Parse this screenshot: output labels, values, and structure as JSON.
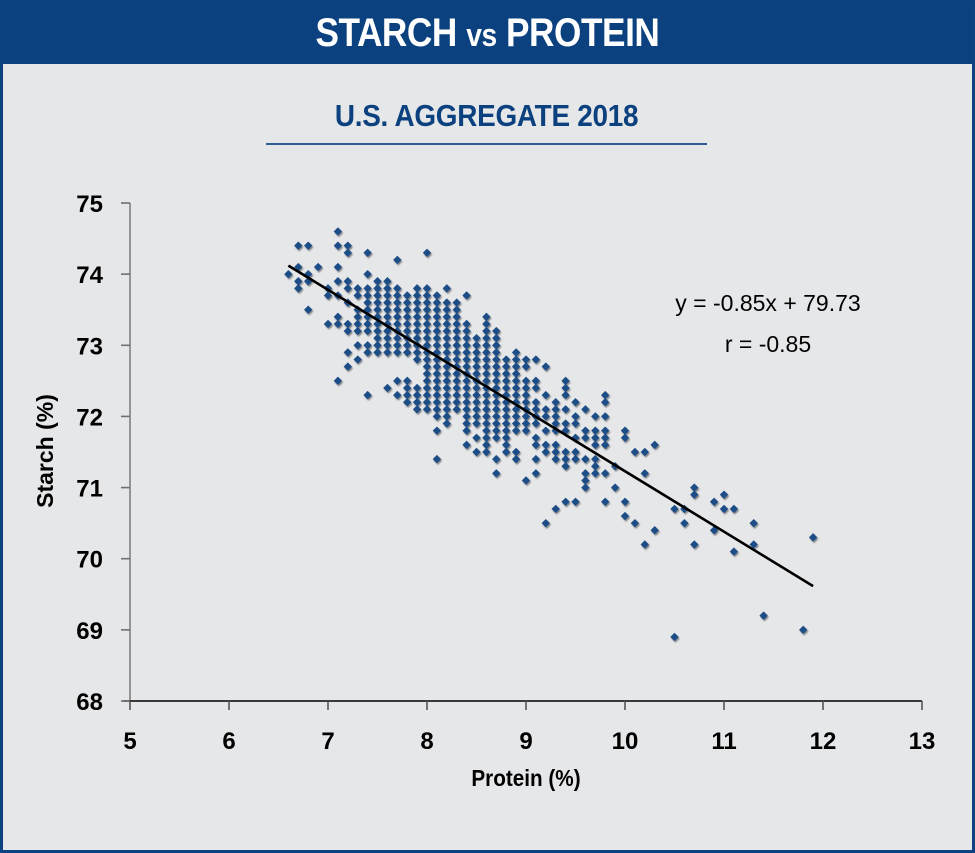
{
  "header": {
    "title_left": "STARCH",
    "title_vs": "vs",
    "title_right": "PROTEIN"
  },
  "colors": {
    "brand_blue": "#0b417e",
    "background": "#e6e7e9",
    "marker": "#1f4e86",
    "trendline": "#000000"
  },
  "chart_data": {
    "type": "scatter",
    "title": "U.S. AGGREGATE 2018",
    "xlabel": "Protein (%)",
    "ylabel": "Starch (%)",
    "xlim": [
      5,
      13
    ],
    "ylim": [
      68,
      75
    ],
    "xticks": [
      "5",
      "6",
      "7",
      "8",
      "9",
      "10",
      "11",
      "12",
      "13"
    ],
    "yticks": [
      "68",
      "69",
      "70",
      "71",
      "72",
      "73",
      "74",
      "75"
    ],
    "grid": false,
    "legend": "none",
    "marker": "diamond",
    "annotations": {
      "equation": "y = -0.85x + 79.73",
      "r": "r = -0.85"
    },
    "trendline": {
      "slope": -0.85,
      "intercept": 79.73,
      "x_range": [
        6.6,
        11.9
      ]
    },
    "points_by_protein": [
      {
        "x": 6.6,
        "y": [
          74.0
        ]
      },
      {
        "x": 6.7,
        "y": [
          74.4,
          74.1,
          73.9,
          73.8
        ]
      },
      {
        "x": 6.8,
        "y": [
          74.4,
          74.0,
          73.9,
          73.5
        ]
      },
      {
        "x": 6.9,
        "y": [
          74.1
        ]
      },
      {
        "x": 7.0,
        "y": [
          73.8,
          73.7,
          73.3
        ]
      },
      {
        "x": 7.1,
        "y": [
          74.6,
          74.4,
          74.1,
          73.9,
          73.7,
          73.4,
          73.3,
          72.5
        ]
      },
      {
        "x": 7.2,
        "y": [
          74.4,
          74.3,
          73.9,
          73.8,
          73.6,
          73.3,
          73.2,
          72.9,
          72.7
        ]
      },
      {
        "x": 7.3,
        "y": [
          73.8,
          73.7,
          73.5,
          73.4,
          73.3,
          73.2,
          73.0,
          72.8
        ]
      },
      {
        "x": 7.4,
        "y": [
          74.3,
          74.0,
          73.8,
          73.7,
          73.6,
          73.5,
          73.4,
          73.3,
          73.2,
          73.0,
          72.9,
          72.3
        ]
      },
      {
        "x": 7.5,
        "y": [
          73.9,
          73.8,
          73.7,
          73.6,
          73.5,
          73.4,
          73.3,
          73.2,
          73.1,
          73.0,
          72.9
        ]
      },
      {
        "x": 7.6,
        "y": [
          73.9,
          73.8,
          73.7,
          73.6,
          73.5,
          73.4,
          73.3,
          73.2,
          73.1,
          73.0,
          72.9,
          72.4
        ]
      },
      {
        "x": 7.7,
        "y": [
          74.2,
          73.8,
          73.7,
          73.6,
          73.5,
          73.4,
          73.3,
          73.2,
          73.1,
          73.0,
          72.9,
          72.5,
          72.3
        ]
      },
      {
        "x": 7.8,
        "y": [
          73.7,
          73.6,
          73.5,
          73.4,
          73.3,
          73.2,
          73.1,
          73.0,
          72.9,
          72.5,
          72.4,
          72.3,
          72.2
        ]
      },
      {
        "x": 7.9,
        "y": [
          73.8,
          73.7,
          73.6,
          73.5,
          73.4,
          73.3,
          73.2,
          73.1,
          73.0,
          72.9,
          72.8,
          72.4,
          72.3,
          72.2,
          72.1
        ]
      },
      {
        "x": 8.0,
        "y": [
          74.3,
          73.8,
          73.7,
          73.6,
          73.5,
          73.4,
          73.3,
          73.2,
          73.1,
          73.0,
          72.9,
          72.8,
          72.7,
          72.6,
          72.5,
          72.4,
          72.3,
          72.2,
          72.1
        ]
      },
      {
        "x": 8.1,
        "y": [
          73.7,
          73.6,
          73.5,
          73.4,
          73.3,
          73.2,
          73.1,
          73.0,
          72.9,
          72.8,
          72.7,
          72.6,
          72.5,
          72.4,
          72.3,
          72.2,
          72.1,
          72.0,
          71.8,
          71.4
        ]
      },
      {
        "x": 8.2,
        "y": [
          73.8,
          73.6,
          73.5,
          73.4,
          73.3,
          73.2,
          73.1,
          73.0,
          72.9,
          72.8,
          72.7,
          72.6,
          72.5,
          72.4,
          72.3,
          72.2,
          72.1,
          72.0,
          71.9
        ]
      },
      {
        "x": 8.3,
        "y": [
          73.6,
          73.5,
          73.4,
          73.3,
          73.2,
          73.1,
          73.0,
          72.9,
          72.8,
          72.7,
          72.6,
          72.5,
          72.4,
          72.3,
          72.2,
          72.1
        ]
      },
      {
        "x": 8.4,
        "y": [
          73.7,
          73.3,
          73.2,
          73.1,
          73.0,
          72.9,
          72.8,
          72.7,
          72.6,
          72.5,
          72.4,
          72.3,
          72.2,
          72.1,
          72.0,
          71.9,
          71.8,
          71.6
        ]
      },
      {
        "x": 8.5,
        "y": [
          73.1,
          73.0,
          72.9,
          72.8,
          72.7,
          72.6,
          72.5,
          72.4,
          72.3,
          72.2,
          72.1,
          72.0,
          71.9,
          71.7,
          71.5
        ]
      },
      {
        "x": 8.6,
        "y": [
          73.4,
          73.3,
          73.2,
          73.1,
          73.0,
          72.9,
          72.8,
          72.7,
          72.6,
          72.5,
          72.4,
          72.3,
          72.2,
          72.1,
          72.0,
          71.9,
          71.8,
          71.7,
          71.6,
          71.5
        ]
      },
      {
        "x": 8.7,
        "y": [
          73.2,
          73.1,
          73.0,
          72.9,
          72.8,
          72.7,
          72.6,
          72.5,
          72.4,
          72.3,
          72.2,
          72.1,
          72.0,
          71.9,
          71.8,
          71.7,
          71.4,
          71.2
        ]
      },
      {
        "x": 8.8,
        "y": [
          72.8,
          72.7,
          72.6,
          72.5,
          72.4,
          72.3,
          72.2,
          72.1,
          72.0,
          71.9,
          71.8,
          71.7,
          71.6,
          71.5
        ]
      },
      {
        "x": 8.9,
        "y": [
          72.9,
          72.8,
          72.7,
          72.6,
          72.5,
          72.4,
          72.3,
          72.2,
          72.1,
          72.0,
          71.9,
          71.8,
          71.5,
          71.4
        ]
      },
      {
        "x": 9.0,
        "y": [
          72.8,
          72.7,
          72.5,
          72.4,
          72.3,
          72.2,
          72.1,
          72.0,
          71.9,
          71.8,
          71.1
        ]
      },
      {
        "x": 9.1,
        "y": [
          72.8,
          72.5,
          72.4,
          72.2,
          72.1,
          72.0,
          71.9,
          71.7,
          71.6,
          71.4,
          71.2
        ]
      },
      {
        "x": 9.2,
        "y": [
          72.7,
          72.3,
          72.1,
          72.0,
          71.8,
          71.6,
          71.5,
          70.5
        ]
      },
      {
        "x": 9.3,
        "y": [
          72.2,
          72.1,
          72.0,
          71.9,
          71.8,
          71.6,
          71.5,
          71.4,
          70.7
        ]
      },
      {
        "x": 9.4,
        "y": [
          72.5,
          72.4,
          72.3,
          72.1,
          71.9,
          71.8,
          71.5,
          71.4,
          71.3,
          70.8
        ]
      },
      {
        "x": 9.5,
        "y": [
          72.2,
          72.0,
          71.9,
          71.7,
          71.5,
          71.4,
          70.8
        ]
      },
      {
        "x": 9.6,
        "y": [
          72.1,
          71.8,
          71.7,
          71.4,
          71.2,
          71.1,
          71.0
        ]
      },
      {
        "x": 9.7,
        "y": [
          72.0,
          71.8,
          71.7,
          71.6,
          71.4,
          71.3,
          71.2
        ]
      },
      {
        "x": 9.8,
        "y": [
          72.3,
          72.2,
          72.0,
          71.8,
          71.7,
          71.6,
          71.2,
          70.8
        ]
      },
      {
        "x": 9.9,
        "y": [
          71.3,
          71.0
        ]
      },
      {
        "x": 10.0,
        "y": [
          71.8,
          71.7,
          70.8,
          70.6
        ]
      },
      {
        "x": 10.1,
        "y": [
          71.5,
          70.5
        ]
      },
      {
        "x": 10.2,
        "y": [
          71.5,
          71.2,
          70.2
        ]
      },
      {
        "x": 10.3,
        "y": [
          71.6,
          70.4
        ]
      },
      {
        "x": 10.5,
        "y": [
          70.7,
          68.9
        ]
      },
      {
        "x": 10.6,
        "y": [
          70.7,
          70.5
        ]
      },
      {
        "x": 10.7,
        "y": [
          71.0,
          70.9,
          70.2
        ]
      },
      {
        "x": 10.9,
        "y": [
          70.8,
          70.4
        ]
      },
      {
        "x": 11.0,
        "y": [
          70.9,
          70.7
        ]
      },
      {
        "x": 11.1,
        "y": [
          70.7,
          70.1
        ]
      },
      {
        "x": 11.3,
        "y": [
          70.5,
          70.2
        ]
      },
      {
        "x": 11.4,
        "y": [
          69.2
        ]
      },
      {
        "x": 11.8,
        "y": [
          69.0
        ]
      },
      {
        "x": 11.9,
        "y": [
          70.3
        ]
      }
    ]
  }
}
